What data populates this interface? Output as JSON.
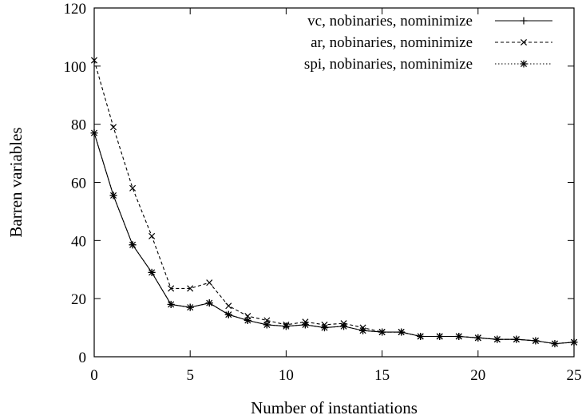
{
  "chart_data": {
    "type": "line",
    "title": "",
    "xlabel": "Number of instantiations",
    "ylabel": "Barren variables",
    "xlim": [
      0,
      25
    ],
    "ylim": [
      0,
      120
    ],
    "xticks": [
      0,
      5,
      10,
      15,
      20,
      25
    ],
    "yticks": [
      0,
      20,
      40,
      60,
      80,
      100,
      120
    ],
    "grid": false,
    "legend_position": "top-right",
    "x": [
      0,
      1,
      2,
      3,
      4,
      5,
      6,
      7,
      8,
      9,
      10,
      11,
      12,
      13,
      14,
      15,
      16,
      17,
      18,
      19,
      20,
      21,
      22,
      23,
      24,
      25
    ],
    "series": [
      {
        "name": "vc, nobinaries, nominimize",
        "line_style": "solid",
        "marker": "plus",
        "values": [
          77,
          55.5,
          38.5,
          29,
          18,
          17,
          18.5,
          14.5,
          12.5,
          11,
          10.5,
          11,
          10,
          10.5,
          9,
          8.5,
          8.5,
          7,
          7,
          7,
          6.5,
          6,
          6,
          5.5,
          4.5,
          5
        ]
      },
      {
        "name": "ar, nobinaries, nominimize",
        "line_style": "dashed",
        "marker": "x",
        "values": [
          102,
          79,
          58,
          41.5,
          23.5,
          23.5,
          25.5,
          17.5,
          14,
          12.5,
          11,
          12,
          11,
          11.5,
          10,
          8.5,
          8.5,
          7,
          7,
          7,
          6.5,
          6,
          6,
          5.5,
          4.5,
          5
        ]
      },
      {
        "name": "spi, nobinaries, nominimize",
        "line_style": "dotted",
        "marker": "star",
        "values": [
          77,
          55.5,
          38.5,
          29,
          18,
          17,
          18.5,
          14.5,
          12.5,
          11,
          10.5,
          11,
          10,
          10.5,
          9,
          8.5,
          8.5,
          7,
          7,
          7,
          6.5,
          6,
          6,
          5.5,
          4.5,
          5
        ]
      }
    ]
  }
}
